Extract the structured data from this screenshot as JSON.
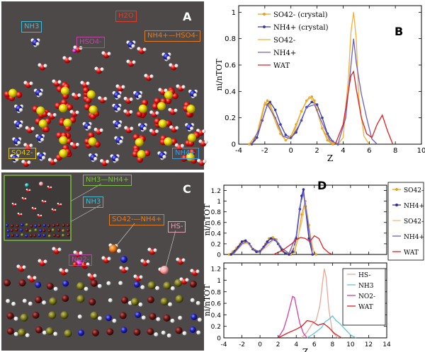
{
  "panels": {
    "A": {
      "letter": "A",
      "labels": [
        {
          "key": "nh3",
          "text": "NH3",
          "color": "#3fbcd6"
        },
        {
          "key": "h2o",
          "text": "H2O",
          "color": "#e23b2b"
        },
        {
          "key": "hso4",
          "text": "HSO4-",
          "color": "#c043a6"
        },
        {
          "key": "nh4hso4",
          "text": "NH4+—HSO4-",
          "color": "#e57a1f"
        },
        {
          "key": "so4",
          "text": "SO42-",
          "color": "#d9c21f"
        },
        {
          "key": "nh4",
          "text": "NH4+",
          "color": "#3e9be0"
        }
      ]
    },
    "C": {
      "letter": "C",
      "labels": [
        {
          "key": "nh3nh4",
          "text": "NH3—NH4+",
          "color": "#7bc043"
        },
        {
          "key": "nh3",
          "text": "NH3",
          "color": "#3fbcd6"
        },
        {
          "key": "so4nh4",
          "text": "SO42-—NH4+",
          "color": "#e57a1f"
        },
        {
          "key": "hs",
          "text": "HS-",
          "color": "#e8a0b8"
        },
        {
          "key": "no2",
          "text": "NO2-",
          "color": "#c043a6"
        }
      ]
    }
  },
  "chart_data": [
    {
      "panel": "B",
      "type": "line",
      "xlabel": "Z",
      "ylabel": "ni/nTOT",
      "xlim": [
        -4,
        10
      ],
      "ylim": [
        0,
        1.05
      ],
      "xticks": [
        -4,
        -2,
        0,
        2,
        4,
        6,
        8,
        10
      ],
      "yticks": [
        0,
        0.2,
        0.4,
        0.6,
        0.8,
        1
      ],
      "legend_position": "top-left",
      "series": [
        {
          "name": "SO42- (crystal)",
          "color": "#e8a21c",
          "markers": true,
          "x": [
            -3.2,
            -2.8,
            -2.4,
            -2.0,
            -1.8,
            -1.6,
            -1.2,
            -0.8,
            -0.4,
            0.0,
            0.4,
            0.8,
            1.2,
            1.6,
            1.8,
            2.0,
            2.4,
            2.8,
            3.2
          ],
          "y": [
            0,
            0.03,
            0.14,
            0.3,
            0.33,
            0.3,
            0.2,
            0.08,
            0.03,
            0.06,
            0.15,
            0.25,
            0.33,
            0.36,
            0.33,
            0.26,
            0.12,
            0.03,
            0
          ]
        },
        {
          "name": "NH4+ (crystal)",
          "color": "#3b3ba8",
          "markers": true,
          "x": [
            -3.0,
            -2.6,
            -2.2,
            -1.8,
            -1.6,
            -1.2,
            -0.8,
            -0.4,
            0.0,
            0.4,
            0.8,
            1.2,
            1.6,
            2.0,
            2.4,
            2.8,
            3.2,
            3.6
          ],
          "y": [
            0,
            0.05,
            0.18,
            0.3,
            0.32,
            0.26,
            0.15,
            0.07,
            0.05,
            0.09,
            0.18,
            0.28,
            0.32,
            0.3,
            0.2,
            0.08,
            0.02,
            0
          ]
        },
        {
          "name": "SO42-",
          "color": "#f2b133",
          "markers": false,
          "x": [
            -3.2,
            -2.6,
            -2.0,
            -1.6,
            -1.0,
            -0.4,
            0.2,
            0.8,
            1.4,
            1.8,
            2.4,
            3.0,
            3.6,
            4.0,
            4.4,
            4.6,
            4.8,
            5.0,
            5.2,
            5.6,
            6.0
          ],
          "y": [
            0,
            0.08,
            0.32,
            0.28,
            0.12,
            0.03,
            0.08,
            0.25,
            0.36,
            0.32,
            0.12,
            0.02,
            0,
            0.05,
            0.5,
            0.85,
            1.0,
            0.8,
            0.35,
            0.06,
            0
          ]
        },
        {
          "name": "NH4+",
          "color": "#6a5fc7",
          "markers": false,
          "x": [
            -3.0,
            -2.4,
            -1.8,
            -1.2,
            -0.6,
            0.0,
            0.6,
            1.2,
            1.8,
            2.4,
            3.0,
            3.6,
            4.2,
            4.6,
            4.8,
            5.0,
            5.4,
            5.8,
            6.2,
            6.6
          ],
          "y": [
            0,
            0.12,
            0.3,
            0.2,
            0.06,
            0.04,
            0.14,
            0.28,
            0.3,
            0.16,
            0.03,
            0,
            0.2,
            0.6,
            0.8,
            0.62,
            0.38,
            0.2,
            0.04,
            0
          ]
        },
        {
          "name": "WAT",
          "color": "#e02020",
          "markers": false,
          "x": [
            3.4,
            4.0,
            4.4,
            4.6,
            4.8,
            5.0,
            5.4,
            5.8,
            6.2,
            6.6,
            7.0,
            7.4,
            7.8
          ],
          "y": [
            0,
            0.15,
            0.4,
            0.52,
            0.55,
            0.42,
            0.2,
            0.08,
            0.05,
            0.15,
            0.22,
            0.1,
            0
          ]
        }
      ]
    },
    {
      "panel": "D-top",
      "type": "line",
      "xlabel": "",
      "ylabel": "ni/nTOT",
      "xlim": [
        -4,
        14
      ],
      "ylim": [
        0,
        1.3
      ],
      "yticks": [
        0,
        0.2,
        0.4,
        0.6,
        0.8,
        1,
        1.2
      ],
      "legend_position": "right-outside",
      "series": [
        {
          "name": "SO42-",
          "color": "#e8a21c",
          "markers": true,
          "x": [
            -3.4,
            -3.0,
            -2.6,
            -2.2,
            -1.8,
            -1.4,
            -1.0,
            -0.6,
            -0.2,
            0.2,
            0.6,
            1.0,
            1.4,
            1.8,
            2.2,
            2.6,
            3.0,
            3.4,
            3.8,
            4.2,
            4.6,
            5.0,
            5.4,
            5.8,
            6.2
          ],
          "y": [
            0,
            0.05,
            0.12,
            0.2,
            0.25,
            0.22,
            0.15,
            0.08,
            0.05,
            0.1,
            0.2,
            0.3,
            0.32,
            0.28,
            0.15,
            0.05,
            0.02,
            0,
            0.05,
            0.3,
            0.75,
            1.0,
            0.55,
            0.1,
            0
          ]
        },
        {
          "name": "NH4+",
          "color": "#2e2ea0",
          "markers": true,
          "x": [
            -3.2,
            -2.8,
            -2.4,
            -2.0,
            -1.6,
            -1.2,
            -0.8,
            -0.4,
            0.0,
            0.4,
            0.8,
            1.2,
            1.6,
            2.0,
            2.4,
            2.8,
            3.2,
            3.6,
            4.0,
            4.4,
            4.6,
            4.8,
            5.0,
            5.4,
            5.8
          ],
          "y": [
            0,
            0.06,
            0.14,
            0.24,
            0.26,
            0.2,
            0.1,
            0.05,
            0.06,
            0.14,
            0.24,
            0.3,
            0.28,
            0.2,
            0.08,
            0.02,
            0,
            0.05,
            0.3,
            0.85,
            1.1,
            1.22,
            0.9,
            0.3,
            0
          ]
        },
        {
          "name": "SO42-",
          "color": "#f2c27a",
          "markers": false,
          "x": [
            -3.0,
            -2.0,
            -1.4,
            -0.8,
            0.0,
            0.8,
            1.6,
            2.4,
            3.2,
            4.0,
            4.6,
            5.0,
            5.4,
            6.0
          ],
          "y": [
            0,
            0.18,
            0.22,
            0.1,
            0.05,
            0.15,
            0.3,
            0.12,
            0.02,
            0.2,
            0.6,
            0.95,
            0.5,
            0
          ]
        },
        {
          "name": "NH4+",
          "color": "#6a5fc7",
          "markers": false,
          "x": [
            -3.0,
            -2.0,
            -1.4,
            -0.8,
            0.0,
            0.8,
            1.6,
            2.4,
            3.2,
            4.0,
            4.4,
            4.8,
            5.2,
            5.8
          ],
          "y": [
            0,
            0.2,
            0.24,
            0.1,
            0.05,
            0.2,
            0.3,
            0.12,
            0.02,
            0.35,
            0.9,
            1.15,
            0.7,
            0
          ]
        },
        {
          "name": "WAT",
          "color": "#e02020",
          "markers": false,
          "x": [
            1.5,
            2.5,
            3.0,
            3.5,
            4.0,
            4.5,
            5.0,
            5.5,
            6.0,
            6.5,
            7.0,
            7.6,
            8.0
          ],
          "y": [
            0,
            0.08,
            0.14,
            0.2,
            0.28,
            0.32,
            0.3,
            0.24,
            0.35,
            0.3,
            0.12,
            0.03,
            0
          ]
        }
      ]
    },
    {
      "panel": "D-bottom",
      "type": "line",
      "xlabel": "Z",
      "ylabel": "ni/nTOT",
      "xlim": [
        -4,
        14
      ],
      "ylim": [
        0,
        1.3
      ],
      "xticks": [
        -4,
        -2,
        0,
        2,
        4,
        6,
        8,
        10,
        12,
        14
      ],
      "yticks": [
        0,
        0.2,
        0.4,
        0.6,
        0.8,
        1,
        1.2
      ],
      "legend_position": "right-inside",
      "series": [
        {
          "name": "HS-",
          "color": "#e8a89a",
          "markers": false,
          "x": [
            4.6,
            5.2,
            5.8,
            6.2,
            6.6,
            6.9,
            7.1,
            7.3,
            7.6,
            8.0,
            8.6
          ],
          "y": [
            0,
            0.1,
            0.25,
            0.3,
            0.55,
            0.95,
            1.2,
            1.05,
            0.5,
            0.1,
            0
          ]
        },
        {
          "name": "NH3",
          "color": "#5cc6d6",
          "markers": false,
          "x": [
            5.2,
            6.0,
            6.8,
            7.2,
            7.6,
            8.0,
            8.4,
            8.8,
            9.4,
            10.0,
            10.6
          ],
          "y": [
            0,
            0.08,
            0.18,
            0.28,
            0.32,
            0.38,
            0.3,
            0.25,
            0.15,
            0.05,
            0
          ]
        },
        {
          "name": "NO2-",
          "color": "#d43fa0",
          "markers": false,
          "x": [
            2.0,
            2.6,
            3.0,
            3.4,
            3.6,
            3.8,
            4.0,
            4.4,
            4.8,
            5.2
          ],
          "y": [
            0,
            0.15,
            0.35,
            0.6,
            0.72,
            0.7,
            0.55,
            0.25,
            0.08,
            0
          ]
        },
        {
          "name": "WAT",
          "color": "#e02020",
          "markers": false,
          "x": [
            2.0,
            3.0,
            4.0,
            4.6,
            5.2,
            5.8,
            6.4,
            7.0,
            7.6,
            8.2,
            9.0
          ],
          "y": [
            0,
            0.08,
            0.15,
            0.2,
            0.3,
            0.28,
            0.22,
            0.25,
            0.18,
            0.08,
            0
          ]
        }
      ]
    }
  ]
}
